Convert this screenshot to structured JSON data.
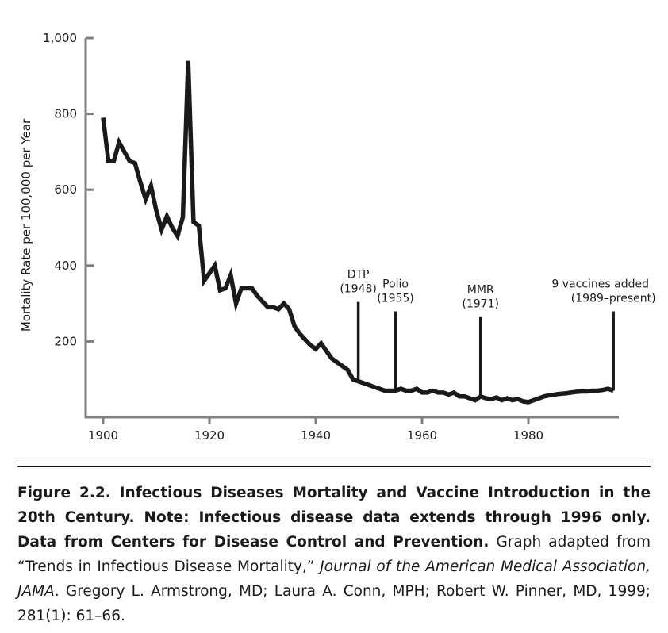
{
  "chart_data": {
    "type": "line",
    "title": "",
    "xlabel": "",
    "ylabel": "Mortality Rate per 100,000 per Year",
    "xlim": [
      1897,
      1996
    ],
    "ylim": [
      0,
      1000
    ],
    "x_ticks": [
      1900,
      1920,
      1940,
      1960,
      1980
    ],
    "y_ticks": [
      200,
      400,
      600,
      800,
      1000
    ],
    "y_tick_labels": [
      "200",
      "400",
      "600",
      "800",
      "1,000"
    ],
    "grid": false,
    "legend": "none",
    "line_color": "#1a1a1a",
    "series": [
      {
        "x": [
          1900,
          1901,
          1902,
          1903,
          1904,
          1905,
          1906,
          1907,
          1908,
          1909,
          1910,
          1911,
          1912,
          1913,
          1914,
          1915,
          1916,
          1917,
          1918,
          1919,
          1920,
          1921,
          1922,
          1923,
          1924,
          1925,
          1926,
          1927,
          1928,
          1929,
          1930,
          1931,
          1932,
          1933,
          1934,
          1935,
          1936,
          1937,
          1938,
          1939,
          1940,
          1941,
          1942,
          1943,
          1944,
          1945,
          1946,
          1947,
          1948,
          1949,
          1950,
          1951,
          1952,
          1953,
          1954,
          1955,
          1956,
          1957,
          1958,
          1959,
          1960,
          1961,
          1962,
          1963,
          1964,
          1965,
          1966,
          1967,
          1968,
          1969,
          1970,
          1971,
          1972,
          1973,
          1974,
          1975,
          1976,
          1977,
          1978,
          1979,
          1980,
          1981,
          1982,
          1983,
          1984,
          1985,
          1986,
          1987,
          1988,
          1989,
          1990,
          1991,
          1992,
          1993,
          1994,
          1995,
          1996
        ],
        "y": [
          790,
          675,
          675,
          725,
          700,
          675,
          670,
          620,
          575,
          610,
          545,
          495,
          530,
          500,
          478,
          528,
          940,
          515,
          505,
          360,
          380,
          400,
          335,
          340,
          375,
          300,
          340,
          340,
          340,
          320,
          305,
          290,
          290,
          285,
          300,
          285,
          240,
          220,
          205,
          190,
          180,
          195,
          175,
          155,
          145,
          135,
          125,
          100,
          95,
          90,
          85,
          80,
          75,
          70,
          70,
          70,
          75,
          70,
          70,
          75,
          65,
          65,
          70,
          65,
          65,
          60,
          65,
          55,
          55,
          50,
          45,
          55,
          50,
          48,
          52,
          45,
          50,
          45,
          48,
          42,
          40,
          45,
          50,
          55,
          58,
          60,
          62,
          63,
          65,
          67,
          68,
          68,
          70,
          70,
          72,
          75,
          70
        ]
      }
    ],
    "annotations": [
      {
        "x": 1948,
        "label_lines": [
          "DTP",
          "(1948)"
        ]
      },
      {
        "x": 1955,
        "label_lines": [
          "Polio",
          "(1955)"
        ]
      },
      {
        "x": 1971,
        "label_lines": [
          "MMR",
          "(1971)"
        ]
      },
      {
        "x": 1996,
        "label_lines": [
          "9 vaccines added",
          "(1989–present)"
        ]
      }
    ]
  },
  "caption": {
    "bold_lead": "Figure 2.2. Infectious Diseases Mortality and Vaccine Introduction in the 20th Century. Note: Infectious disease data extends through 1996 only. Data from Centers for Disease Control and Prevention.",
    "text_1": " Graph adapted from “Trends in Infectious Disease Mortality,” ",
    "italic": "Journal of the American Medical Association, JAMA",
    "text_2": ". Gregory L. Armstrong, MD; Laura A. Conn, MPH; Robert W. Pinner, MD, 1999; 281(1): 61–66."
  }
}
